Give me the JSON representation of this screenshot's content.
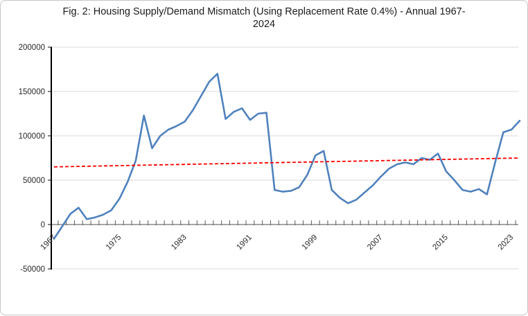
{
  "window": {
    "background": "#FFFFFF",
    "border_color": "#C6C6C6"
  },
  "chart_data": {
    "type": "line",
    "title": "Fig. 2: Housing Supply/Demand Mismatch (Using Replacement Rate 0.4%) - Annual 1967-2024",
    "x_first_year": 1967,
    "x_last_year": 2024,
    "values": [
      -16000,
      -2000,
      12000,
      19000,
      6000,
      8000,
      11000,
      16000,
      29000,
      48000,
      72000,
      123000,
      86000,
      100000,
      107000,
      111000,
      116000,
      129000,
      145000,
      161000,
      170000,
      119000,
      127000,
      131000,
      118000,
      125000,
      126000,
      39000,
      37000,
      38000,
      42000,
      56000,
      78000,
      83000,
      39000,
      30000,
      24000,
      28000,
      36000,
      44000,
      54000,
      63000,
      68000,
      70000,
      68000,
      75000,
      73000,
      80000,
      60000,
      50000,
      39000,
      37000,
      40000,
      34000,
      70000,
      104000,
      107000,
      117000
    ],
    "trend_line": {
      "style": "dashed",
      "color": "#FF0000",
      "start_value": 65000,
      "end_value": 75000
    },
    "series_color": "#4F81BD",
    "xticks": [
      "1967",
      "1975",
      "1983",
      "1991",
      "1999",
      "2007",
      "2015",
      "2023"
    ],
    "yticks": [
      "-50000",
      "0",
      "50000",
      "100000",
      "150000",
      "200000"
    ],
    "ylim": [
      -50000,
      200000
    ],
    "grid": true,
    "legend": false,
    "colors": {
      "gridline": "#D9D9D9",
      "y_axis": "#000000",
      "x_axis": "#A6A6A6",
      "tick": "#595959",
      "label_text": "#262626"
    }
  }
}
